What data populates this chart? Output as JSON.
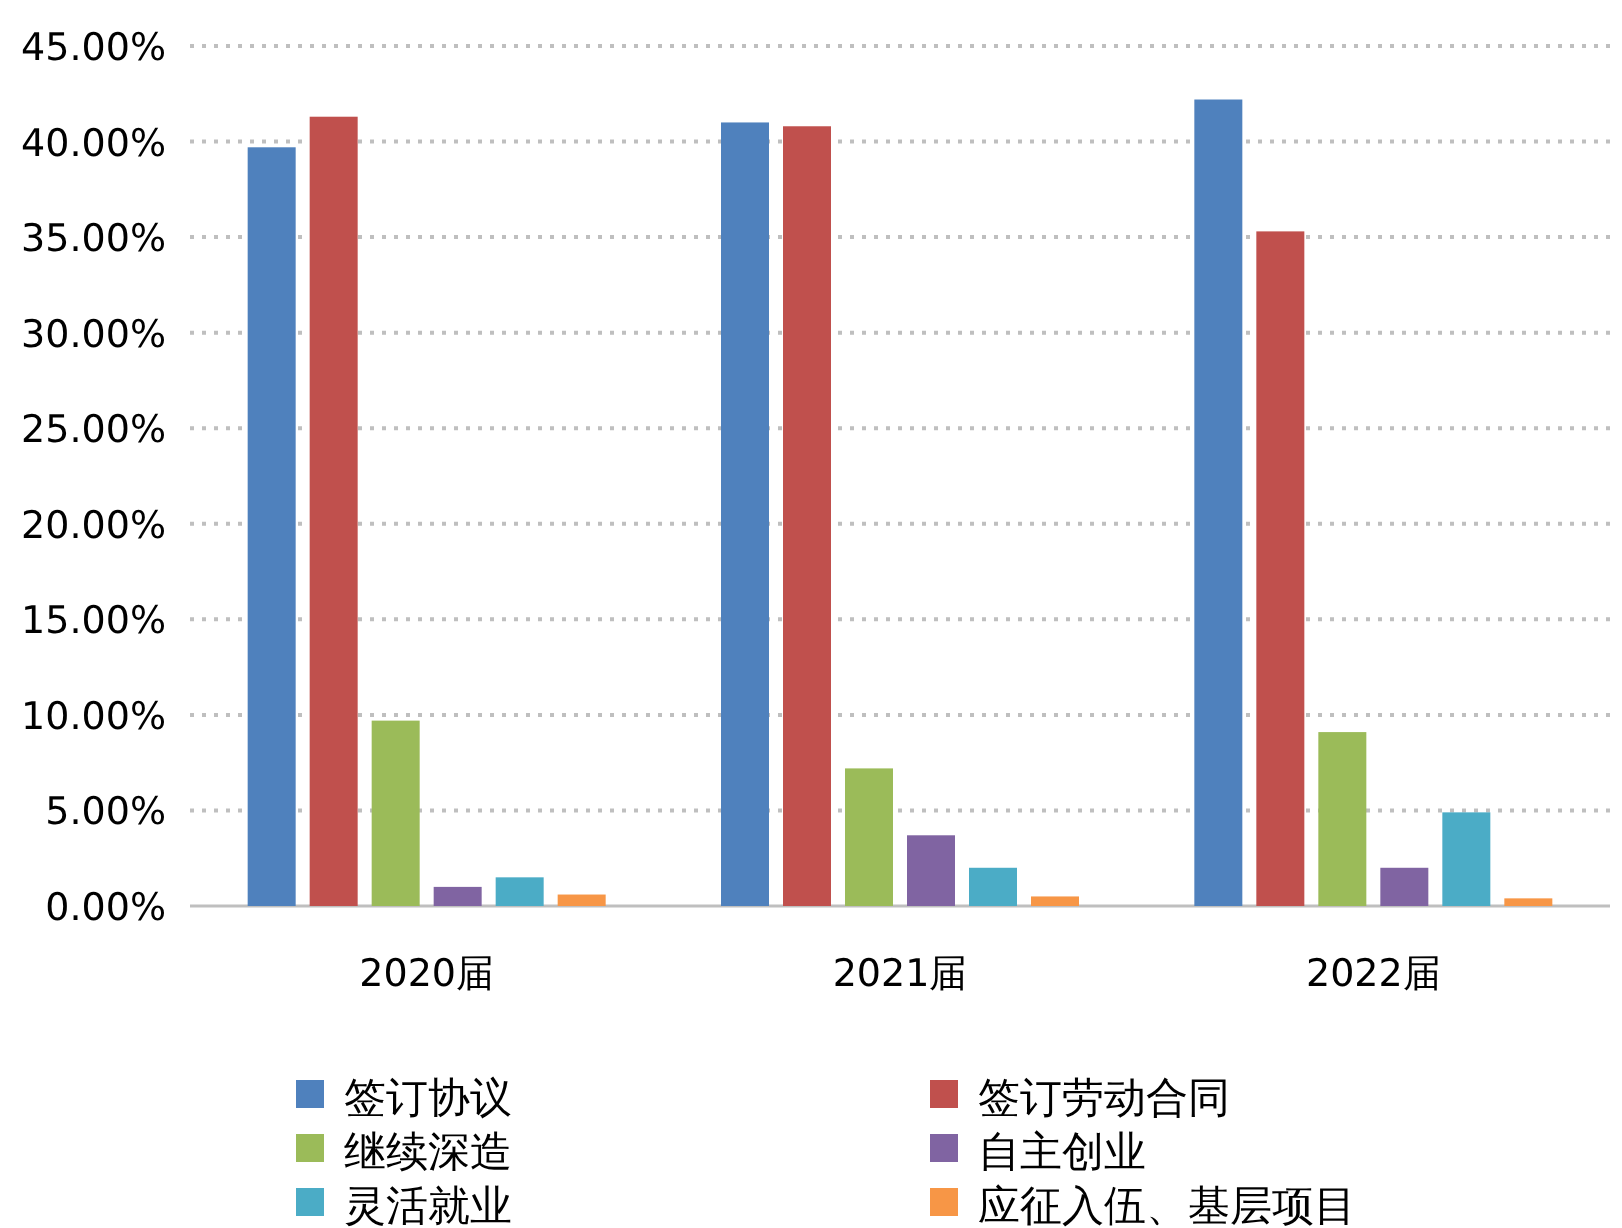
{
  "chart_data": {
    "type": "bar",
    "categories": [
      "2020届",
      "2021届",
      "2022届"
    ],
    "series": [
      {
        "name": "签订协议",
        "color": "#4f81bd",
        "values": [
          39.7,
          41.0,
          42.2
        ]
      },
      {
        "name": "签订劳动合同",
        "color": "#c0504d",
        "values": [
          41.3,
          40.8,
          35.3
        ]
      },
      {
        "name": "继续深造",
        "color": "#9bbb59",
        "values": [
          9.7,
          7.2,
          9.1
        ]
      },
      {
        "name": "自主创业",
        "color": "#8064a2",
        "values": [
          1.0,
          3.7,
          2.0
        ]
      },
      {
        "name": "灵活就业",
        "color": "#4bacc6",
        "values": [
          1.5,
          2.0,
          4.9
        ]
      },
      {
        "name": "应征入伍、基层项目",
        "color": "#f79646",
        "values": [
          0.6,
          0.5,
          0.4
        ]
      }
    ],
    "ylim": [
      0,
      45
    ],
    "yticks": [
      {
        "value": 0,
        "label": "0.00%"
      },
      {
        "value": 5,
        "label": "5.00%"
      },
      {
        "value": 10,
        "label": "10.00%"
      },
      {
        "value": 15,
        "label": "15.00%"
      },
      {
        "value": 20,
        "label": "20.00%"
      },
      {
        "value": 25,
        "label": "25.00%"
      },
      {
        "value": 30,
        "label": "30.00%"
      },
      {
        "value": 35,
        "label": "35.00%"
      },
      {
        "value": 40,
        "label": "40.00%"
      },
      {
        "value": 45,
        "label": "45.00%"
      }
    ],
    "grid": "y",
    "legend": "bottom"
  }
}
